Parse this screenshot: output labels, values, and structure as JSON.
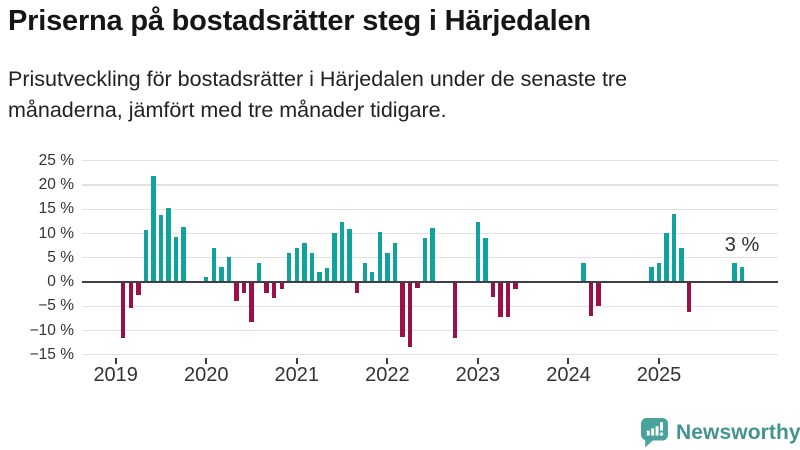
{
  "header": {
    "title": "Priserna på bostadsrätter steg i Härjedalen",
    "subtitle_line1": "Prisutveckling för bostadsrätter i Härjedalen under de senaste tre",
    "subtitle_line2": "månaderna, jämfört med tre månader tidigare."
  },
  "footer": {
    "brand": "Newsworthy",
    "logo_icon": "newsworthy-speech-bubble-chart-icon"
  },
  "chart_data": {
    "type": "bar",
    "title": "Priserna på bostadsrätter steg i Härjedalen",
    "xlabel": "",
    "ylabel": "",
    "unit": "%",
    "ylim": [
      -15,
      25
    ],
    "y_ticks": [
      25,
      20,
      15,
      10,
      5,
      0,
      -5,
      -10,
      -15
    ],
    "y_tick_labels": [
      "25 %",
      "20 %",
      "15 %",
      "10 %",
      "5 %",
      "0 %",
      "−5 %",
      "−10 %",
      "−15 %"
    ],
    "x_tick_labels": [
      "2019",
      "2020",
      "2021",
      "2022",
      "2023",
      "2024",
      "2025"
    ],
    "x_start_month": "2019-01",
    "grid": true,
    "legend": "none",
    "annotation": {
      "text": "3 %",
      "month": "2025-12"
    },
    "colors": {
      "positive": "#10a39e",
      "negative": "#9b1046",
      "zero_axis": "#3f3f46",
      "grid": "#e2e2e2"
    },
    "points": [
      {
        "month": "2019-02",
        "value": -11.5
      },
      {
        "month": "2019-03",
        "value": -5.3
      },
      {
        "month": "2019-04",
        "value": -2.7
      },
      {
        "month": "2019-05",
        "value": 10.8
      },
      {
        "month": "2019-06",
        "value": 21.9
      },
      {
        "month": "2019-07",
        "value": 13.9
      },
      {
        "month": "2019-08",
        "value": 15.3
      },
      {
        "month": "2019-09",
        "value": 9.2
      },
      {
        "month": "2019-10",
        "value": 11.3
      },
      {
        "month": "2020-01",
        "value": 1.0
      },
      {
        "month": "2020-02",
        "value": 7.0
      },
      {
        "month": "2020-03",
        "value": 3.1
      },
      {
        "month": "2020-04",
        "value": 5.1
      },
      {
        "month": "2020-05",
        "value": -4.0
      },
      {
        "month": "2020-06",
        "value": -2.3
      },
      {
        "month": "2020-07",
        "value": -8.2
      },
      {
        "month": "2020-08",
        "value": 3.9
      },
      {
        "month": "2020-09",
        "value": -2.3
      },
      {
        "month": "2020-10",
        "value": -3.2
      },
      {
        "month": "2020-11",
        "value": -1.4
      },
      {
        "month": "2020-12",
        "value": 6.0
      },
      {
        "month": "2021-01",
        "value": 7.0
      },
      {
        "month": "2021-02",
        "value": 8.0
      },
      {
        "month": "2021-03",
        "value": 5.9
      },
      {
        "month": "2021-04",
        "value": 2.0
      },
      {
        "month": "2021-05",
        "value": 2.9
      },
      {
        "month": "2021-06",
        "value": 10.2
      },
      {
        "month": "2021-07",
        "value": 12.3
      },
      {
        "month": "2021-08",
        "value": 11.0
      },
      {
        "month": "2021-09",
        "value": -2.3
      },
      {
        "month": "2021-10",
        "value": 3.9
      },
      {
        "month": "2021-11",
        "value": 2.0
      },
      {
        "month": "2021-12",
        "value": 10.3
      },
      {
        "month": "2022-01",
        "value": 6.0
      },
      {
        "month": "2022-02",
        "value": 8.1
      },
      {
        "month": "2022-03",
        "value": -11.4
      },
      {
        "month": "2022-04",
        "value": -13.4
      },
      {
        "month": "2022-05",
        "value": -1.3
      },
      {
        "month": "2022-06",
        "value": 9.1
      },
      {
        "month": "2022-07",
        "value": 11.1
      },
      {
        "month": "2022-10",
        "value": -11.6
      },
      {
        "month": "2023-01",
        "value": 12.3
      },
      {
        "month": "2023-02",
        "value": 9.0
      },
      {
        "month": "2023-03",
        "value": -3.1
      },
      {
        "month": "2023-04",
        "value": -7.2
      },
      {
        "month": "2023-05",
        "value": -7.2
      },
      {
        "month": "2023-06",
        "value": -1.5
      },
      {
        "month": "2024-03",
        "value": 3.9
      },
      {
        "month": "2024-04",
        "value": -7.1
      },
      {
        "month": "2024-05",
        "value": -5.0
      },
      {
        "month": "2024-12",
        "value": 3.1
      },
      {
        "month": "2025-01",
        "value": 4.0
      },
      {
        "month": "2025-02",
        "value": 10.2
      },
      {
        "month": "2025-03",
        "value": 14.0
      },
      {
        "month": "2025-04",
        "value": 7.1
      },
      {
        "month": "2025-05",
        "value": -6.2
      },
      {
        "month": "2025-11",
        "value": 4.0
      },
      {
        "month": "2025-12",
        "value": 3.0
      }
    ]
  }
}
